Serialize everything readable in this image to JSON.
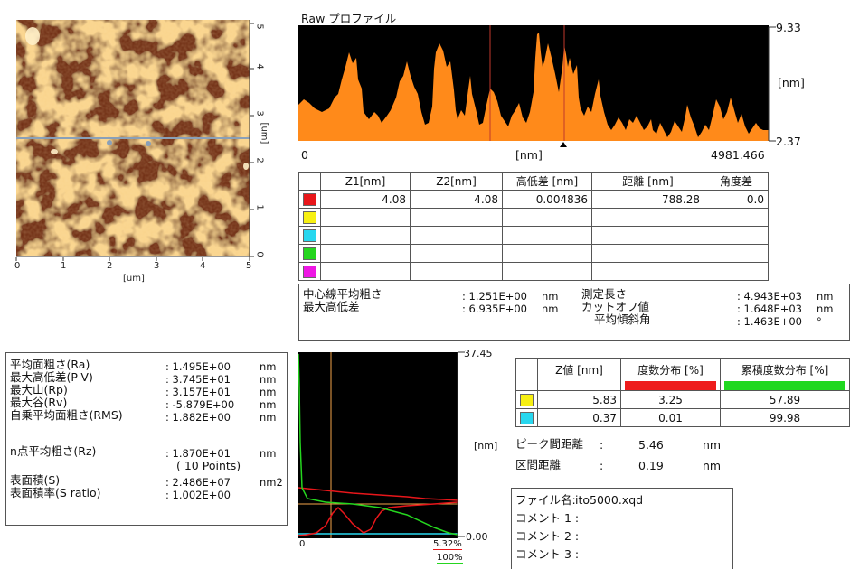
{
  "afm_image": {
    "x_ticks": [
      "0",
      "1",
      "2",
      "3",
      "4",
      "5"
    ],
    "y_ticks": [
      "0",
      "1",
      "2",
      "3",
      "4",
      "5"
    ],
    "x_unit": "[um]",
    "y_unit": "[um]",
    "colors": {
      "bright": "#f2a640",
      "dark": "#6b2608",
      "line": "#8aa0b8"
    }
  },
  "profile": {
    "title": "Raw プロファイル",
    "x_min": "0",
    "x_unit": "[nm]",
    "x_max": "4981.466",
    "z_max": "9.33",
    "z_unit": "[nm]",
    "z_min": "2.37",
    "colors": {
      "fill": "#ff8a1a",
      "bg": "#000000",
      "cursor": "#c0392b"
    }
  },
  "measure_table": {
    "headers": [
      "",
      "Z1[nm]",
      "Z2[nm]",
      "高低差 [nm]",
      "距離 [nm]",
      "角度差"
    ],
    "rows": [
      {
        "color": "#e8161a",
        "z1": "4.08",
        "z2": "4.08",
        "diff": "0.004836",
        "dist": "788.28",
        "angle": "0.0"
      },
      {
        "color": "#f7f012",
        "z1": "",
        "z2": "",
        "diff": "",
        "dist": "",
        "angle": ""
      },
      {
        "color": "#27d7ef",
        "z1": "",
        "z2": "",
        "diff": "",
        "dist": "",
        "angle": ""
      },
      {
        "color": "#25d61f",
        "z1": "",
        "z2": "",
        "diff": "",
        "dist": "",
        "angle": ""
      },
      {
        "color": "#ee17e4",
        "z1": "",
        "z2": "",
        "diff": "",
        "dist": "",
        "angle": ""
      }
    ]
  },
  "line_roughness": {
    "left": [
      {
        "label": "中心線平均粗さ",
        "value": ": 1.251E+00",
        "unit": "nm"
      },
      {
        "label": "最大高低差",
        "value": ": 6.935E+00",
        "unit": "nm"
      }
    ],
    "right": [
      {
        "label": "測定長さ",
        "value": ": 4.943E+03",
        "unit": "nm"
      },
      {
        "label": "カットオフ値",
        "value": ": 1.648E+03",
        "unit": "nm"
      },
      {
        "label": "平均傾斜角",
        "value": ": 1.463E+00",
        "unit": "°"
      }
    ]
  },
  "surface_roughness": [
    {
      "label": "平均面粗さ(Ra)",
      "value": ": 1.495E+00",
      "unit": "nm"
    },
    {
      "label": "最大高低差(P-V)",
      "value": ": 3.745E+01",
      "unit": "nm"
    },
    {
      "label": "最大山(Rp)",
      "value": ": 3.157E+01",
      "unit": "nm"
    },
    {
      "label": "最大谷(Rv)",
      "value": ": -5.879E+00",
      "unit": "nm"
    },
    {
      "label": "自乗平均面粗さ(RMS)",
      "value": ": 1.882E+00",
      "unit": "nm"
    },
    {
      "label": "n点平均粗さ(Rz)",
      "value": ": 1.870E+01",
      "unit": "nm"
    },
    {
      "label": "",
      "value": "( 10 Points)",
      "unit": ""
    },
    {
      "label": "表面積(S)",
      "value": ": 2.486E+07",
      "unit": "nm2"
    },
    {
      "label": "表面積率(S ratio)",
      "value": ": 1.002E+00",
      "unit": ""
    }
  ],
  "histogram": {
    "z_max": "37.45",
    "z_unit": "[nm]",
    "z_min": "0.00",
    "x_min": "0",
    "freq_max": "5.32%",
    "cum_max": "100%",
    "colors": {
      "freq": "#e8161a",
      "cum": "#25d61f",
      "marker": "#f5a34a"
    }
  },
  "distribution_table": {
    "headers": [
      "",
      "Z値 [nm]",
      "度数分布 [%]",
      "累積度数分布 [%]"
    ],
    "header_colors": [
      "",
      "",
      "#ee1c1c",
      "#1fd81f"
    ],
    "rows": [
      {
        "color": "#f7f012",
        "z": "5.83",
        "freq": "3.25",
        "cum": "57.89"
      },
      {
        "color": "#27d7ef",
        "z": "0.37",
        "freq": "0.01",
        "cum": "99.98"
      }
    ]
  },
  "peak": {
    "peak_label": "ピーク間距離",
    "peak_colon": ":",
    "peak_value": "5.46",
    "peak_unit": "nm",
    "interval_label": "区間距離",
    "interval_colon": ":",
    "interval_value": "0.19",
    "interval_unit": "nm"
  },
  "file_info": {
    "file_label": "ファイル名:",
    "file_value": "ito5000.xqd",
    "comment1": "コメント 1 :",
    "comment2": "コメント 2 :",
    "comment3": "コメント 3 :"
  }
}
